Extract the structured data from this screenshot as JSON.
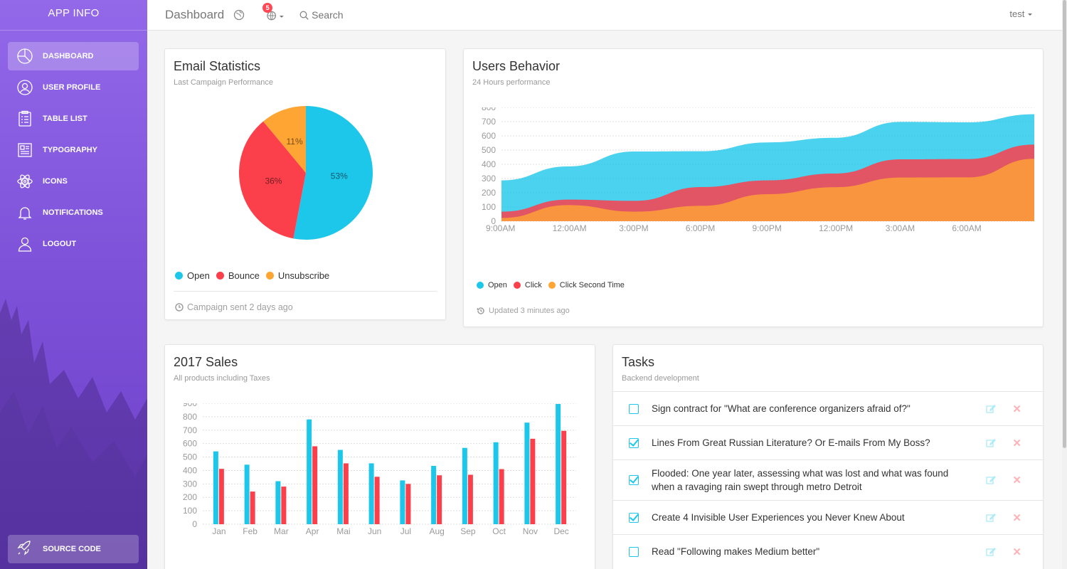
{
  "sidebar": {
    "brand": "APP INFO",
    "items": [
      {
        "label": "DASHBOARD",
        "icon": "chart-pie-icon",
        "active": true
      },
      {
        "label": "USER PROFILE",
        "icon": "user-circle-icon"
      },
      {
        "label": "TABLE LIST",
        "icon": "clipboard-list-icon"
      },
      {
        "label": "TYPOGRAPHY",
        "icon": "newspaper-icon"
      },
      {
        "label": "ICONS",
        "icon": "atom-icon"
      },
      {
        "label": "NOTIFICATIONS",
        "icon": "bell-icon"
      },
      {
        "label": "LOGOUT",
        "icon": "user-logout-icon"
      }
    ],
    "source_code": "SOURCE CODE"
  },
  "topbar": {
    "title": "Dashboard",
    "notification_count": "5",
    "search_placeholder": "Search",
    "user": "test"
  },
  "email_stats": {
    "title": "Email Statistics",
    "subtitle": "Last Campaign Performance",
    "footer": "Campaign sent 2 days ago",
    "legend": [
      "Open",
      "Bounce",
      "Unsubscribe"
    ]
  },
  "users_behavior": {
    "title": "Users Behavior",
    "subtitle": "24 Hours performance",
    "footer": "Updated 3 minutes ago",
    "legend": [
      "Open",
      "Click",
      "Click Second Time"
    ]
  },
  "sales": {
    "title": "2017 Sales",
    "subtitle": "All products including Taxes"
  },
  "tasks": {
    "title": "Tasks",
    "subtitle": "Backend development",
    "items": [
      {
        "text": "Sign contract for \"What are conference organizers afraid of?\"",
        "checked": false
      },
      {
        "text": "Lines From Great Russian Literature? Or E-mails From My Boss?",
        "checked": true
      },
      {
        "text": "Flooded: One year later, assessing what was lost and what was found when a ravaging rain swept through metro Detroit",
        "checked": true
      },
      {
        "text": "Create 4 Invisible User Experiences you Never Knew About",
        "checked": true
      },
      {
        "text": "Read \"Following makes Medium better\"",
        "checked": false
      }
    ]
  },
  "colors": {
    "cyan": "#1dc7ea",
    "red": "#fb404b",
    "orange": "#ffa534",
    "sidebar": "#9368e9"
  },
  "chart_data": [
    {
      "type": "pie",
      "labels": [
        "Open",
        "Bounce",
        "Unsubscribe"
      ],
      "values": [
        53,
        36,
        11
      ],
      "data_labels": [
        "53%",
        "36%",
        "11%"
      ]
    },
    {
      "type": "area",
      "x": [
        "9:00AM",
        "12:00AM",
        "3:00PM",
        "6:00PM",
        "9:00PM",
        "12:00PM",
        "3:00AM",
        "6:00AM",
        ""
      ],
      "x_tick_labels": [
        "9:00AM",
        "12:00AM",
        "3:00PM",
        "6:00PM",
        "9:00PM",
        "12:00PM",
        "3:00AM",
        "6:00AM"
      ],
      "ylim": [
        0,
        800
      ],
      "yticks": [
        0,
        100,
        200,
        300,
        400,
        500,
        600,
        700,
        800
      ],
      "grid": true,
      "legend_position": "bottom-left",
      "series": [
        {
          "name": "Open",
          "values": [
            287,
            385,
            490,
            492,
            554,
            586,
            698,
            695,
            752
          ]
        },
        {
          "name": "Click",
          "values": [
            67,
            152,
            143,
            240,
            287,
            335,
            435,
            437,
            539
          ]
        },
        {
          "name": "Click Second Time",
          "values": [
            23,
            113,
            67,
            108,
            190,
            239,
            307,
            308,
            439
          ]
        }
      ]
    },
    {
      "type": "bar",
      "categories": [
        "Jan",
        "Feb",
        "Mar",
        "Apr",
        "Mai",
        "Jun",
        "Jul",
        "Aug",
        "Sep",
        "Oct",
        "Nov",
        "Dec"
      ],
      "ylim": [
        0,
        900
      ],
      "yticks": [
        0,
        100,
        200,
        300,
        400,
        500,
        600,
        700,
        800,
        900
      ],
      "grid": true,
      "series": [
        {
          "values": [
            542,
            443,
            320,
            780,
            553,
            453,
            326,
            434,
            568,
            610,
            756,
            895
          ]
        },
        {
          "values": [
            412,
            243,
            280,
            580,
            453,
            353,
            300,
            364,
            368,
            410,
            636,
            695
          ]
        }
      ]
    }
  ]
}
